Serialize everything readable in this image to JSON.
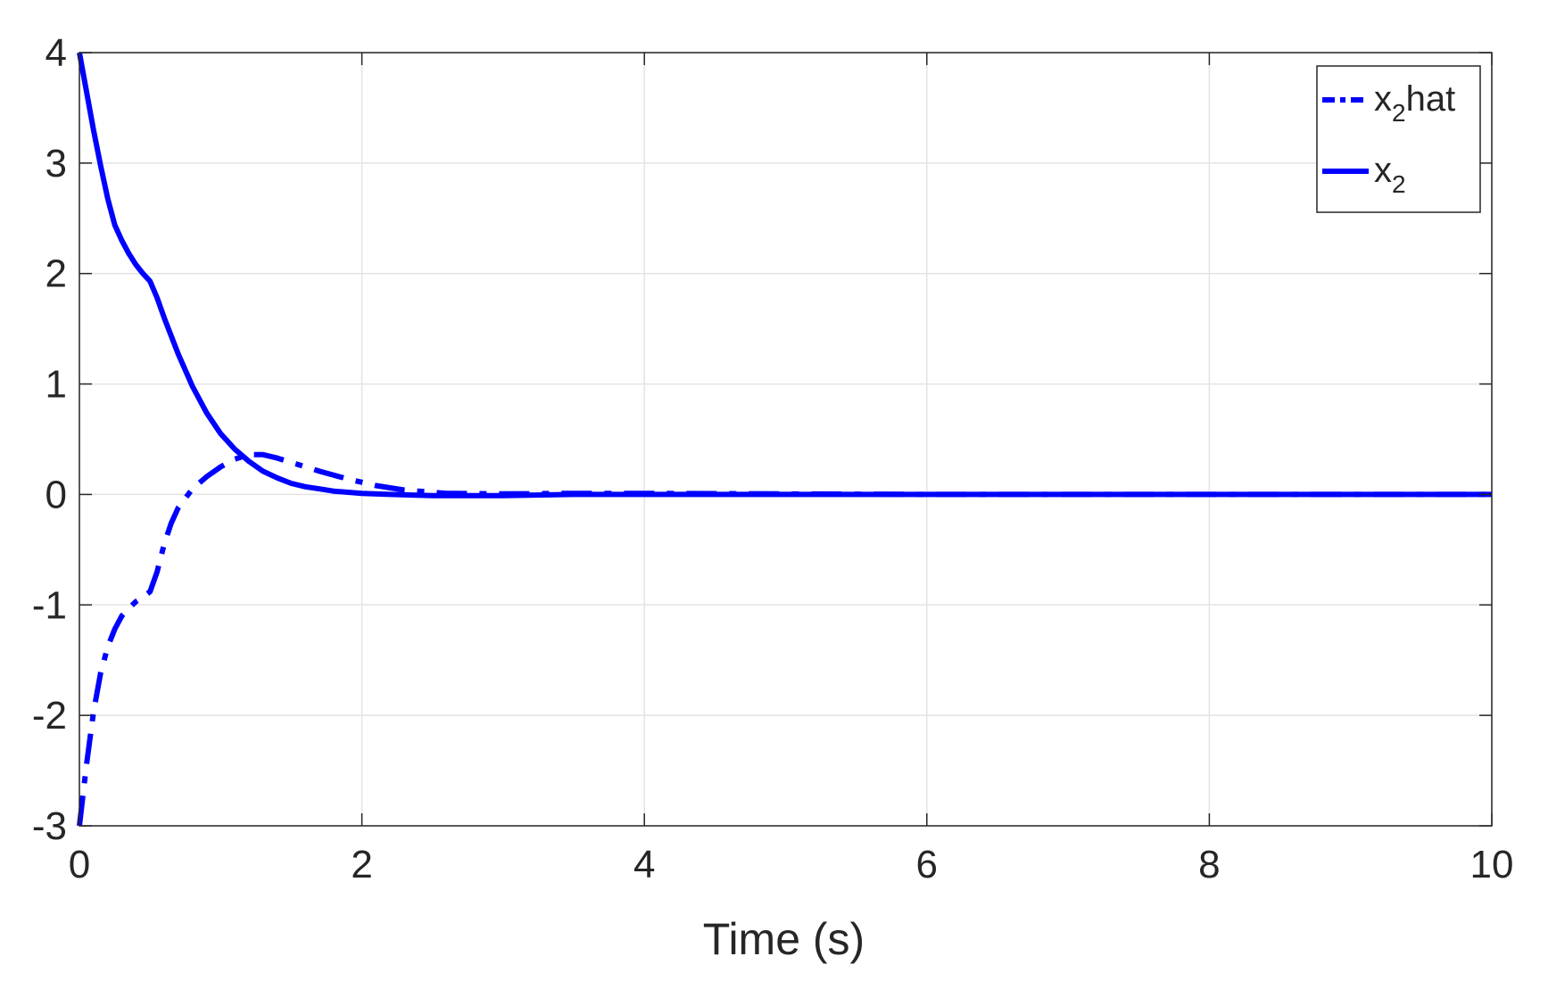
{
  "chart_data": {
    "type": "line",
    "title": "",
    "xlabel": "Time (s)",
    "ylabel": "",
    "xlim": [
      0,
      10
    ],
    "ylim": [
      -3,
      4
    ],
    "grid": true,
    "legend_position": "top-right",
    "x_ticks": [
      "0",
      "2",
      "4",
      "6",
      "8",
      "10"
    ],
    "y_ticks": [
      "-3",
      "-2",
      "-1",
      "0",
      "1",
      "2",
      "3",
      "4"
    ],
    "series": [
      {
        "name": "x2hat",
        "legend_base": "x",
        "legend_sub": "2",
        "legend_suffix": "hat",
        "style": "dashdot",
        "color": "#0000ff",
        "x": [
          0,
          0.05,
          0.1,
          0.15,
          0.2,
          0.25,
          0.3,
          0.35,
          0.4,
          0.45,
          0.5,
          0.55,
          0.6,
          0.65,
          0.7,
          0.8,
          0.9,
          1.0,
          1.1,
          1.2,
          1.3,
          1.4,
          1.5,
          1.7,
          1.9,
          2.1,
          2.3,
          2.6,
          3.0,
          3.5,
          4.0,
          5.0,
          6.0,
          8.0,
          10.0
        ],
        "y": [
          -3.0,
          -2.45,
          -1.97,
          -1.62,
          -1.38,
          -1.22,
          -1.1,
          -1.03,
          -0.97,
          -0.93,
          -0.88,
          -0.7,
          -0.45,
          -0.26,
          -0.12,
          0.05,
          0.16,
          0.25,
          0.32,
          0.36,
          0.36,
          0.33,
          0.29,
          0.21,
          0.14,
          0.08,
          0.04,
          0.01,
          0.005,
          0.01,
          0.01,
          0.005,
          0.0,
          0.0,
          0.0
        ]
      },
      {
        "name": "x2",
        "legend_base": "x",
        "legend_sub": "2",
        "legend_suffix": "",
        "style": "solid",
        "color": "#0000ff",
        "x": [
          0,
          0.05,
          0.1,
          0.15,
          0.2,
          0.25,
          0.3,
          0.35,
          0.4,
          0.45,
          0.5,
          0.55,
          0.6,
          0.7,
          0.8,
          0.9,
          1.0,
          1.1,
          1.2,
          1.3,
          1.4,
          1.5,
          1.6,
          1.7,
          1.8,
          2.0,
          2.2,
          2.5,
          3.0,
          3.5,
          4.0,
          6.0,
          8.0,
          10.0
        ],
        "y": [
          4.0,
          3.65,
          3.3,
          2.98,
          2.68,
          2.44,
          2.3,
          2.18,
          2.08,
          2.0,
          1.93,
          1.78,
          1.6,
          1.27,
          0.98,
          0.74,
          0.55,
          0.41,
          0.3,
          0.21,
          0.15,
          0.1,
          0.07,
          0.05,
          0.03,
          0.01,
          0.0,
          -0.01,
          -0.01,
          0.0,
          0.0,
          0.0,
          0.0,
          0.0
        ]
      }
    ]
  }
}
